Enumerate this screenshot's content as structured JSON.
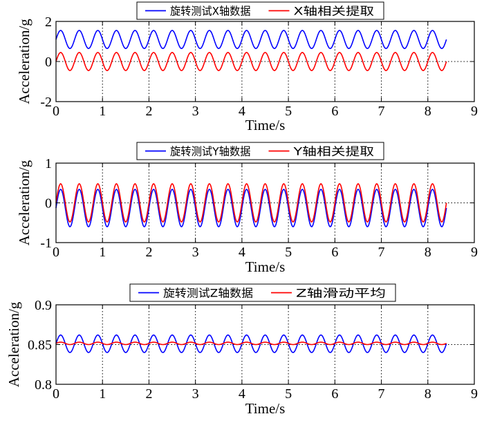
{
  "chart_data": [
    {
      "type": "line",
      "xlabel": "Time/s",
      "ylabel": "Acceleration/g",
      "xlim": [
        0,
        9
      ],
      "ylim": [
        -2,
        2
      ],
      "xticks": [
        "0",
        "1",
        "2",
        "3",
        "4",
        "5",
        "6",
        "7",
        "8",
        "9"
      ],
      "yticks": [
        "2",
        "0",
        "-2"
      ],
      "grid": "dotted",
      "legend_position": "top-center",
      "x_range_data": [
        0,
        8.4
      ],
      "series": [
        {
          "name": "旋转测试X轴数据",
          "color": "#0000ff",
          "waveform": "sine",
          "mean": 1.1,
          "amplitude": 0.45,
          "period_s": 0.4
        },
        {
          "name": "X轴相关提取",
          "color": "#ff0000",
          "waveform": "sine",
          "mean": 0.0,
          "amplitude": 0.45,
          "period_s": 0.4
        }
      ]
    },
    {
      "type": "line",
      "xlabel": "Time/s",
      "ylabel": "Acceleration/g",
      "xlim": [
        0,
        9
      ],
      "ylim": [
        -1,
        1
      ],
      "xticks": [
        "0",
        "1",
        "2",
        "3",
        "4",
        "5",
        "6",
        "7",
        "8",
        "9"
      ],
      "yticks": [
        "1",
        "0",
        "-1"
      ],
      "grid": "dotted",
      "legend_position": "top-center",
      "x_range_data": [
        0,
        8.4
      ],
      "series": [
        {
          "name": "旋转测试Y轴数据",
          "color": "#0000ff",
          "waveform": "sine",
          "mean": -0.13,
          "amplitude": 0.47,
          "period_s": 0.4
        },
        {
          "name": "Y轴相关提取",
          "color": "#ff0000",
          "waveform": "sine",
          "mean": 0.0,
          "amplitude": 0.48,
          "period_s": 0.4
        }
      ]
    },
    {
      "type": "line",
      "xlabel": "Time/s",
      "ylabel": "Acceleration/g",
      "xlim": [
        0,
        9
      ],
      "ylim": [
        0.8,
        0.9
      ],
      "xticks": [
        "0",
        "1",
        "2",
        "3",
        "4",
        "5",
        "6",
        "7",
        "8",
        "9"
      ],
      "yticks": [
        "0.9",
        "0.85",
        "0.8"
      ],
      "grid": "dotted",
      "legend_position": "top-center",
      "x_range_data": [
        0,
        8.4
      ],
      "series": [
        {
          "name": "旋转测试Z轴数据",
          "color": "#0000ff",
          "waveform": "sine",
          "mean": 0.851,
          "amplitude": 0.011,
          "period_s": 0.4
        },
        {
          "name": "Z轴滑动平均",
          "color": "#ff0000",
          "waveform": "sine",
          "mean": 0.8515,
          "amplitude": 0.0015,
          "period_s": 0.4
        }
      ]
    }
  ]
}
